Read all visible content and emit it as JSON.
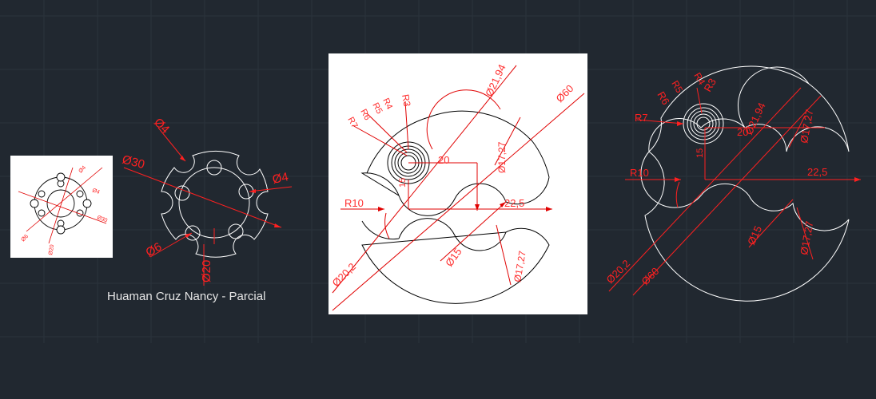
{
  "caption": "Huaman Cruz Nancy - Parcial",
  "colors": {
    "background": "#212830",
    "grid": "#2c343e",
    "dimension": "#ff2020",
    "geometry_dark": "#ffffff",
    "geometry_light": "#000000"
  },
  "thumb": {
    "labels": {
      "d4a": "Ø4",
      "d4b": "Ø4",
      "d30": "Ø30",
      "d6": "Ø6",
      "d20": "Ø20"
    }
  },
  "part1": {
    "labels": {
      "d4_top": "Ø4",
      "d30": "Ø30",
      "d4_right": "Ø4",
      "d6": "Ø6",
      "d20": "Ø20"
    }
  },
  "part2": {
    "labels": {
      "d21_94": "Ø21,94",
      "d60": "Ø60",
      "r3": "R3",
      "r4": "R4",
      "r5": "R5",
      "r6": "R6",
      "r7": "R7",
      "dim20": "20",
      "d17_27_top": "Ø17,27",
      "r10": "R10",
      "dim22_5": "22,5",
      "dim15": "15",
      "d15": "Ø15",
      "d17_27_bottom": "Ø17,27",
      "d20_2": "Ø20,2"
    }
  },
  "part3": {
    "labels": {
      "r6": "R6",
      "r5": "R5",
      "r4": "R4",
      "r3": "R3",
      "r7": "R7",
      "dim20": "20",
      "d21_94": "Ø21,94",
      "d17_27_top": "Ø17,27",
      "r10": "R10",
      "dim22_5": "22,5",
      "dim15": "15",
      "d15": "Ø15",
      "d17_27_bottom": "Ø17,27",
      "d20_2": "Ø20,2",
      "d60": "Ø60"
    }
  }
}
